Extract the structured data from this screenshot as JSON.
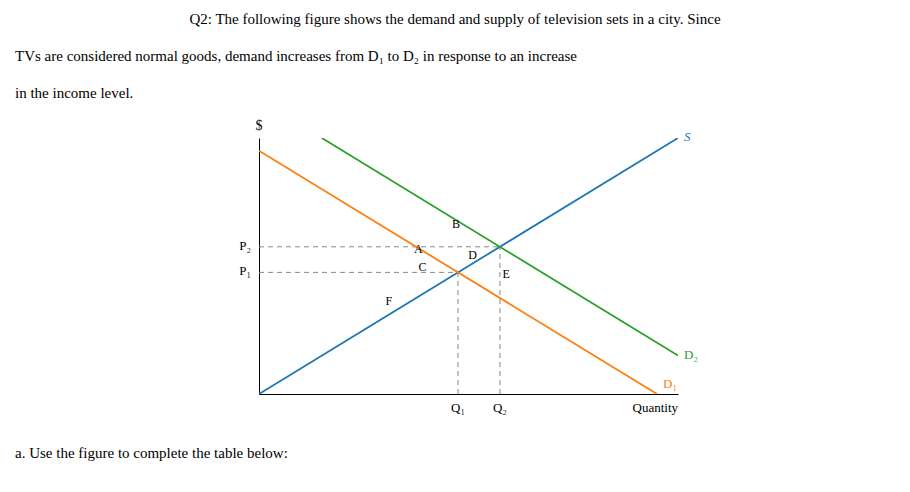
{
  "chart_data": {
    "type": "line",
    "title": [
      "Q2: The following figure shows the demand and supply of television sets in a city.  Since",
      "TVs are considered normal goods, demand increases from D₁ to D₂ in response to an increase",
      "in the income level."
    ],
    "caption": "a. Use the figure to complete the table below:",
    "xlabel": "Quantity",
    "ylabel": "$",
    "xlim": [
      0,
      10
    ],
    "ylim": [
      0,
      10
    ],
    "xticks": [],
    "yticks": [],
    "tick_labels": false,
    "grid": false,
    "series": [
      {
        "name": "S",
        "x": [
          0,
          10
        ],
        "values": [
          0,
          10
        ]
      },
      {
        "name": "D₁",
        "x": [
          0,
          9.5
        ],
        "values": [
          9.5,
          0
        ]
      },
      {
        "name": "D₂",
        "x": [
          1.5,
          10
        ],
        "values": [
          10,
          1.5
        ]
      }
    ],
    "equilibria": [
      {
        "x": 4.75,
        "y": 4.75,
        "x_label": "Q₁",
        "y_label": "P₁",
        "line_style": "dashed"
      },
      {
        "x": 5.75,
        "y": 5.75,
        "x_label": "Q₂",
        "y_label": "P₂",
        "line_style": "dashed"
      }
    ],
    "annotations": [
      {
        "text": "A",
        "x": 3.8,
        "y": 5.6
      },
      {
        "text": "B",
        "x": 4.7,
        "y": 6.6
      },
      {
        "text": "C",
        "x": 3.9,
        "y": 4.9
      },
      {
        "text": "D",
        "x": 5.1,
        "y": 5.4
      },
      {
        "text": "E",
        "x": 5.9,
        "y": 4.65
      },
      {
        "text": "F",
        "x": 3.1,
        "y": 3.6
      }
    ]
  }
}
